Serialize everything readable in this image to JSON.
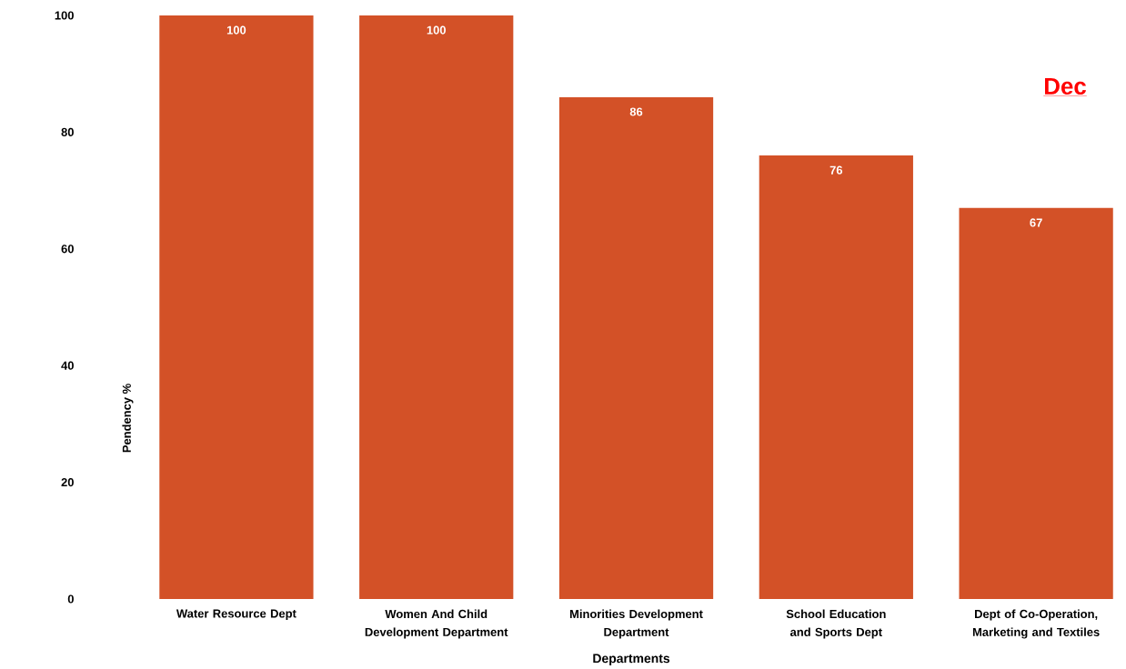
{
  "chart_data": {
    "type": "bar",
    "xlabel": "Departments",
    "ylabel": "Pendency %",
    "categories": [
      "Water Resource Dept",
      "Women And Child Development Department",
      "Minorities Development Department",
      "School Education and Sports Dept",
      "Dept of Co-Operation, Marketing and Textiles"
    ],
    "values": [
      100,
      100,
      86,
      76,
      67
    ],
    "color": "#d35127",
    "data_labels": true,
    "ylim": [
      0,
      100
    ],
    "yticks": [
      0,
      20,
      40,
      60,
      80,
      100
    ],
    "annotations": [
      "Dec"
    ]
  }
}
